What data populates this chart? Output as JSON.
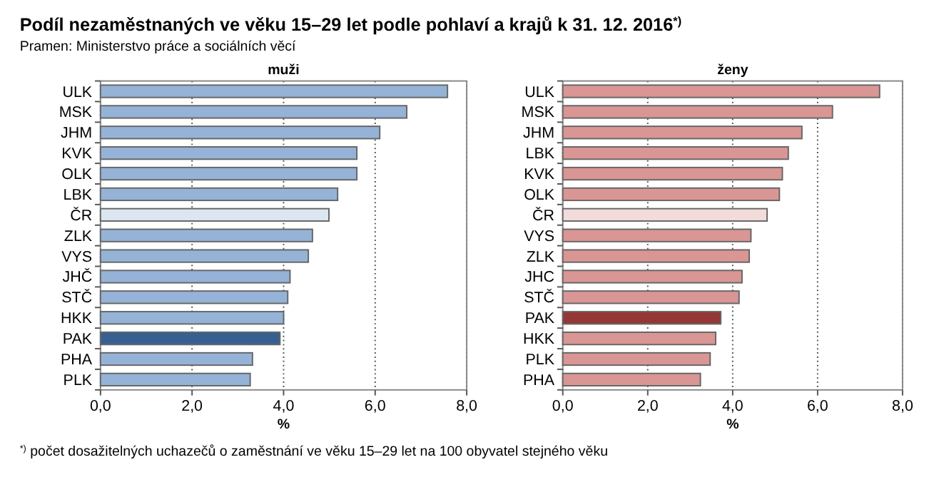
{
  "chart_data": [
    {
      "type": "bar",
      "orientation": "horizontal",
      "title": "muži",
      "xlabel": "%",
      "annotations": [
        "Podíl nezaměstnaných ve věku 15–29 let podle pohlaví a krajů k 31. 12. 2016$^{*)}$",
        "Pramen: Ministerstvo práce a sociálních věcí",
        "$^{*)}$ počet dosažitelných uchazečů o zaměstnání ve věku 15–29 let na 100 obyvatel stejného věku"
      ],
      "categories": [
        "ULK",
        "MSK",
        "JHM",
        "KVK",
        "OLK",
        "LBK",
        "ČR",
        "ZLK",
        "VYS",
        "JHČ",
        "STČ",
        "HKK",
        "PAK",
        "PHA",
        "PLK"
      ],
      "values": [
        7.58,
        6.69,
        6.1,
        5.6,
        5.6,
        5.18,
        4.99,
        4.63,
        4.54,
        4.14,
        4.09,
        4.0,
        3.92,
        3.32,
        3.27
      ],
      "colors": [
        "#95b3d7",
        "#95b3d7",
        "#95b3d7",
        "#95b3d7",
        "#95b3d7",
        "#95b3d7",
        "#dce6f1",
        "#95b3d7",
        "#95b3d7",
        "#95b3d7",
        "#95b3d7",
        "#95b3d7",
        "#366092",
        "#95b3d7",
        "#95b3d7"
      ],
      "xlim": [
        0,
        8
      ],
      "xticks": [
        {
          "value": 0,
          "label": "0,0"
        },
        {
          "value": 2,
          "label": "2,0"
        },
        {
          "value": 4,
          "label": "4,0"
        },
        {
          "value": 6,
          "label": "6,0"
        },
        {
          "value": 8,
          "label": "8,0"
        }
      ],
      "grid": "x"
    },
    {
      "type": "bar",
      "orientation": "horizontal",
      "title": "ženy",
      "xlabel": "%",
      "categories": [
        "ULK",
        "MSK",
        "JHM",
        "LBK",
        "KVK",
        "OLK",
        "ČR",
        "VYS",
        "ZLK",
        "JHC",
        "STČ",
        "PAK",
        "HKK",
        "PLK",
        "PHA"
      ],
      "values": [
        7.46,
        6.35,
        5.63,
        5.31,
        5.17,
        5.1,
        4.81,
        4.43,
        4.39,
        4.22,
        4.15,
        3.72,
        3.6,
        3.47,
        3.24
      ],
      "colors": [
        "#d99694",
        "#d99694",
        "#d99694",
        "#d99694",
        "#d99694",
        "#d99694",
        "#f2dcdb",
        "#d99694",
        "#d99694",
        "#d99694",
        "#d99694",
        "#953735",
        "#d99694",
        "#d99694",
        "#d99694"
      ],
      "xlim": [
        0,
        8
      ],
      "xticks": [
        {
          "value": 0,
          "label": "0,0"
        },
        {
          "value": 2,
          "label": "2,0"
        },
        {
          "value": 4,
          "label": "4,0"
        },
        {
          "value": 6,
          "label": "6,0"
        },
        {
          "value": 8,
          "label": "8,0"
        }
      ],
      "grid": "x"
    }
  ]
}
